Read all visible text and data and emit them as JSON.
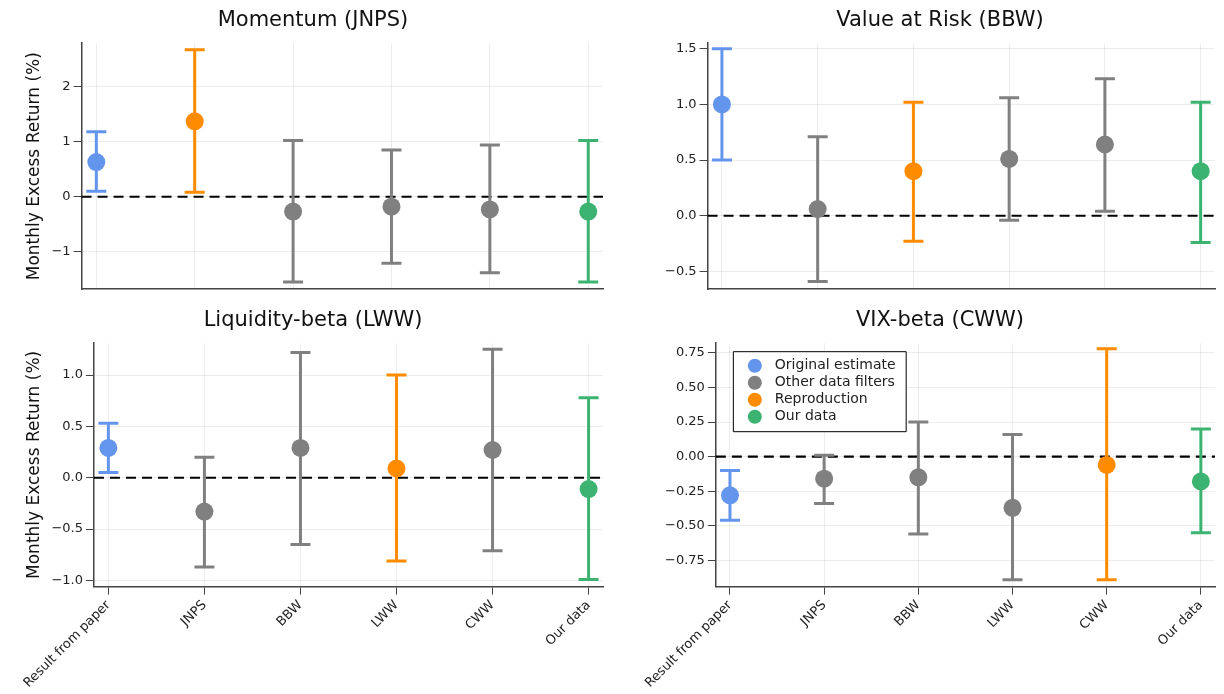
{
  "chart_data": [
    {
      "type": "scatter",
      "title": "Momentum (JNPS)",
      "ylabel": "Monthly Excess Return (%)",
      "categories": [
        null,
        null,
        null,
        null,
        null,
        null
      ],
      "ylim": [
        -1.68,
        2.79
      ],
      "yticks": [
        -1,
        0,
        1,
        2
      ],
      "grid": true,
      "marker": "circle",
      "tick_labels": "y",
      "ref_lines": [
        {
          "axis": "y",
          "value": 0,
          "color": "#000000",
          "line_style": "dashed"
        }
      ],
      "series": [
        {
          "color": "#6495ed",
          "values": [
            0.63,
            null,
            null,
            null,
            null,
            null
          ],
          "errors": [
            [
              0.1,
              1.18
            ],
            null,
            null,
            null,
            null,
            null
          ]
        },
        {
          "color": "#808080",
          "values": [
            null,
            null,
            -0.27,
            -0.18,
            -0.23,
            null
          ],
          "errors": [
            null,
            null,
            [
              -1.55,
              1.02
            ],
            [
              -1.21,
              0.85
            ],
            [
              -1.38,
              0.94
            ],
            null
          ]
        },
        {
          "color": "#ff8c00",
          "values": [
            null,
            1.37,
            null,
            null,
            null,
            null
          ],
          "errors": [
            null,
            [
              0.08,
              2.67
            ],
            null,
            null,
            null,
            null
          ]
        },
        {
          "color": "#3cb371",
          "values": [
            null,
            null,
            null,
            null,
            null,
            -0.27
          ],
          "errors": [
            null,
            null,
            null,
            null,
            null,
            [
              -1.55,
              1.02
            ]
          ]
        }
      ]
    },
    {
      "type": "scatter",
      "title": "Value at Risk (BBW)",
      "categories": [
        null,
        null,
        null,
        null,
        null,
        null
      ],
      "ylim": [
        -0.66,
        1.55
      ],
      "yticks": [
        -0.5,
        {
          "value": 0,
          "label": "0.0"
        },
        0.5,
        {
          "value": 1,
          "label": "1.0"
        },
        1.5
      ],
      "grid": true,
      "marker": "circle",
      "tick_labels": "y",
      "ref_lines": [
        {
          "axis": "y",
          "value": 0,
          "color": "#000000",
          "line_style": "dashed"
        }
      ],
      "series": [
        {
          "color": "#6495ed",
          "values": [
            1.0,
            null,
            null,
            null,
            null,
            null
          ],
          "errors": [
            [
              0.5,
              1.5
            ],
            null,
            null,
            null,
            null,
            null
          ]
        },
        {
          "color": "#808080",
          "values": [
            null,
            0.06,
            null,
            0.51,
            0.64,
            null
          ],
          "errors": [
            null,
            [
              -0.59,
              0.71
            ],
            null,
            [
              -0.04,
              1.06
            ],
            [
              0.04,
              1.23
            ],
            null
          ]
        },
        {
          "color": "#ff8c00",
          "values": [
            null,
            null,
            0.4,
            null,
            null,
            null
          ],
          "errors": [
            null,
            null,
            [
              -0.23,
              1.02
            ],
            null,
            null,
            null
          ]
        },
        {
          "color": "#3cb371",
          "values": [
            null,
            null,
            null,
            null,
            null,
            0.4
          ],
          "errors": [
            null,
            null,
            null,
            null,
            null,
            [
              -0.24,
              1.02
            ]
          ]
        }
      ]
    },
    {
      "type": "scatter",
      "title": "Liquidity-beta (LWW)",
      "ylabel": "Monthly Excess Return (%)",
      "categories": [
        "Result from paper",
        "JNPS",
        "BBW",
        "LWW",
        "CWW",
        "Our data"
      ],
      "ylim": [
        -1.06,
        1.31
      ],
      "yticks": [
        {
          "value": -1,
          "label": "−1.0"
        },
        -0.5,
        {
          "value": 0,
          "label": "0.0"
        },
        0.5,
        {
          "value": 1,
          "label": "1.0"
        }
      ],
      "grid": true,
      "marker": "circle",
      "ref_lines": [
        {
          "axis": "y",
          "value": 0,
          "color": "#000000",
          "line_style": "dashed"
        }
      ],
      "series": [
        {
          "color": "#6495ed",
          "values": [
            0.29,
            null,
            null,
            null,
            null,
            null
          ],
          "errors": [
            [
              0.05,
              0.53
            ],
            null,
            null,
            null,
            null,
            null
          ]
        },
        {
          "color": "#808080",
          "values": [
            null,
            -0.33,
            0.29,
            null,
            0.27,
            null
          ],
          "errors": [
            null,
            [
              -0.87,
              0.2
            ],
            [
              -0.65,
              1.22
            ],
            null,
            [
              -0.71,
              1.25
            ],
            null
          ]
        },
        {
          "color": "#ff8c00",
          "values": [
            null,
            null,
            null,
            0.09,
            null,
            null
          ],
          "errors": [
            null,
            null,
            null,
            [
              -0.81,
              1.0
            ],
            null,
            null
          ]
        },
        {
          "color": "#3cb371",
          "values": [
            null,
            null,
            null,
            null,
            null,
            -0.11
          ],
          "errors": [
            null,
            null,
            null,
            null,
            null,
            [
              -0.99,
              0.78
            ]
          ]
        }
      ]
    },
    {
      "type": "scatter",
      "title": "VIX-beta (CWW)",
      "categories": [
        "Result from paper",
        "JNPS",
        "BBW",
        "LWW",
        "CWW",
        "Our data"
      ],
      "ylim": [
        -0.94,
        0.82
      ],
      "yticks": [
        -0.75,
        {
          "value": -0.5,
          "label": "−0.50"
        },
        -0.25,
        {
          "value": 0,
          "label": "0.00"
        },
        0.25,
        {
          "value": 0.5,
          "label": "0.50"
        },
        0.75
      ],
      "grid": true,
      "marker": "circle",
      "legend": "top left",
      "ref_lines": [
        {
          "axis": "y",
          "value": 0,
          "color": "#000000",
          "line_style": "dashed"
        }
      ],
      "series": [
        {
          "name": "Original estimate",
          "color": "#6495ed",
          "values": [
            -0.28,
            null,
            null,
            null,
            null,
            null
          ],
          "errors": [
            [
              -0.46,
              -0.1
            ],
            null,
            null,
            null,
            null,
            null
          ]
        },
        {
          "name": "Other data filters",
          "color": "#808080",
          "values": [
            null,
            -0.16,
            -0.15,
            -0.37,
            null,
            null
          ],
          "errors": [
            null,
            [
              -0.34,
              0.01
            ],
            [
              -0.56,
              0.25
            ],
            [
              -0.89,
              0.16
            ],
            null,
            null
          ]
        },
        {
          "name": "Reproduction",
          "color": "#ff8c00",
          "values": [
            null,
            null,
            null,
            null,
            -0.06,
            null
          ],
          "errors": [
            null,
            null,
            null,
            null,
            [
              -0.89,
              0.78
            ],
            null
          ]
        },
        {
          "name": "Our data",
          "color": "#3cb371",
          "values": [
            null,
            null,
            null,
            null,
            null,
            -0.18
          ],
          "errors": [
            null,
            null,
            null,
            null,
            null,
            [
              -0.55,
              0.2
            ]
          ]
        }
      ]
    }
  ]
}
